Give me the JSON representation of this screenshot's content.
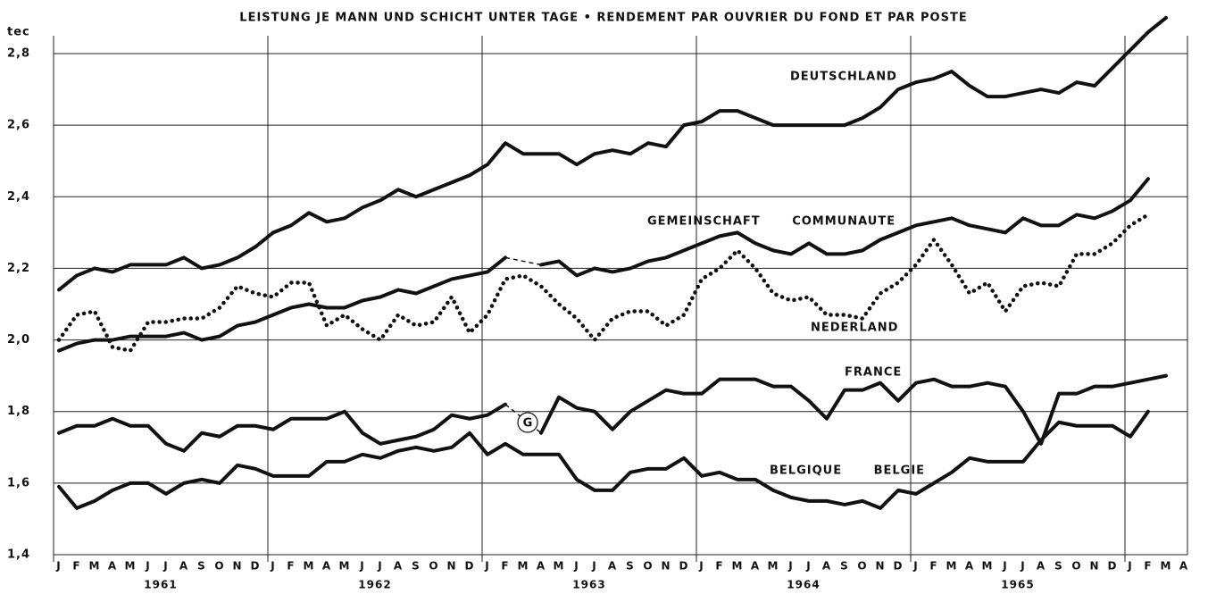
{
  "chart_data": {
    "type": "line",
    "title": "LEISTUNG JE MANN UND SCHICHT UNTER TAGE • RENDEMENT PAR OUVRIER DU FOND ET PAR POSTE",
    "y_label": "tec",
    "categories": [
      "J",
      "F",
      "M",
      "A",
      "M",
      "J",
      "J",
      "A",
      "S",
      "O",
      "N",
      "D",
      "J",
      "F",
      "M",
      "A",
      "M",
      "J",
      "J",
      "A",
      "S",
      "O",
      "N",
      "D",
      "J",
      "F",
      "M",
      "A",
      "M",
      "J",
      "J",
      "A",
      "S",
      "O",
      "N",
      "D",
      "J",
      "F",
      "M",
      "A",
      "M",
      "J",
      "J",
      "A",
      "S",
      "O",
      "N",
      "D",
      "J",
      "F",
      "M",
      "A",
      "M",
      "J",
      "J",
      "A",
      "S",
      "O",
      "N",
      "D",
      "J",
      "F",
      "M",
      "A"
    ],
    "years": [
      "1961",
      "1962",
      "1963",
      "1964",
      "1965"
    ],
    "ylim": [
      1.4,
      2.9
    ],
    "yticks": [
      {
        "value": 1.4,
        "label": "1,4"
      },
      {
        "value": 1.6,
        "label": "1,6"
      },
      {
        "value": 1.8,
        "label": "1,8"
      },
      {
        "value": 2.0,
        "label": "2,0"
      },
      {
        "value": 2.2,
        "label": "2,2"
      },
      {
        "value": 2.4,
        "label": "2,4"
      },
      {
        "value": 2.6,
        "label": "2,6"
      },
      {
        "value": 2.8,
        "label": "2,8"
      }
    ],
    "grid": true,
    "annotation": "G",
    "series": [
      {
        "name": "DEUTSCHLAND",
        "color": "#111111",
        "style": "solid",
        "values": [
          2.14,
          2.18,
          2.2,
          2.19,
          2.21,
          2.21,
          2.21,
          2.23,
          2.2,
          2.21,
          2.23,
          2.26,
          2.3,
          2.32,
          2.355,
          2.33,
          2.34,
          2.37,
          2.39,
          2.42,
          2.4,
          2.42,
          2.44,
          2.46,
          2.49,
          2.55,
          2.52,
          2.52,
          2.52,
          2.49,
          2.52,
          2.53,
          2.52,
          2.55,
          2.54,
          2.6,
          2.61,
          2.64,
          2.64,
          2.62,
          2.6,
          2.6,
          2.6,
          2.6,
          2.6,
          2.62,
          2.65,
          2.7,
          2.72,
          2.73,
          2.75,
          2.71,
          2.68,
          2.68,
          2.69,
          2.7,
          2.69,
          2.72,
          2.71,
          2.76,
          2.81,
          2.86,
          2.9,
          null
        ]
      },
      {
        "name": "GEMEINSCHAFT COMMUNAUTE",
        "color": "#111111",
        "style": "solid",
        "values": [
          1.97,
          1.99,
          2.0,
          2.0,
          2.01,
          2.01,
          2.01,
          2.02,
          2.0,
          2.01,
          2.04,
          2.05,
          2.07,
          2.09,
          2.1,
          2.09,
          2.09,
          2.11,
          2.12,
          2.14,
          2.13,
          2.15,
          2.17,
          2.18,
          2.19,
          2.23,
          null,
          2.21,
          2.22,
          2.18,
          2.2,
          2.19,
          2.2,
          2.22,
          2.23,
          2.25,
          2.27,
          2.29,
          2.3,
          2.27,
          2.25,
          2.24,
          2.27,
          2.24,
          2.24,
          2.25,
          2.28,
          2.3,
          2.32,
          2.33,
          2.34,
          2.32,
          2.31,
          2.3,
          2.34,
          2.32,
          2.32,
          2.35,
          2.34,
          2.36,
          2.39,
          2.45,
          null,
          null
        ]
      },
      {
        "name": "NEDERLAND",
        "color": "#111111",
        "style": "dotted",
        "values": [
          2.0,
          2.07,
          2.08,
          1.98,
          1.97,
          2.05,
          2.05,
          2.06,
          2.06,
          2.09,
          2.15,
          2.13,
          2.12,
          2.16,
          2.16,
          2.04,
          2.07,
          2.03,
          2.0,
          2.07,
          2.04,
          2.05,
          2.12,
          2.02,
          2.07,
          2.17,
          2.18,
          2.15,
          2.1,
          2.06,
          2.0,
          2.06,
          2.08,
          2.08,
          2.04,
          2.07,
          2.17,
          2.2,
          2.25,
          2.2,
          2.13,
          2.11,
          2.12,
          2.07,
          2.07,
          2.06,
          2.13,
          2.16,
          2.21,
          2.28,
          2.21,
          2.13,
          2.16,
          2.08,
          2.15,
          2.16,
          2.15,
          2.24,
          2.24,
          2.27,
          2.32,
          2.35,
          null,
          null
        ]
      },
      {
        "name": "FRANCE",
        "color": "#111111",
        "style": "solid",
        "values": [
          1.74,
          1.76,
          1.76,
          1.78,
          1.76,
          1.76,
          1.71,
          1.69,
          1.74,
          1.73,
          1.76,
          1.76,
          1.75,
          1.78,
          1.78,
          1.78,
          1.8,
          1.74,
          1.71,
          1.72,
          1.73,
          1.75,
          1.79,
          1.78,
          1.79,
          1.82,
          null,
          1.74,
          1.84,
          1.81,
          1.8,
          1.75,
          1.8,
          1.83,
          1.86,
          1.85,
          1.85,
          1.89,
          1.89,
          1.89,
          1.87,
          1.87,
          1.83,
          1.78,
          1.86,
          1.86,
          1.88,
          1.83,
          1.88,
          1.89,
          1.87,
          1.87,
          1.88,
          1.87,
          1.8,
          1.71,
          1.85,
          1.85,
          1.87,
          1.87,
          1.88,
          1.89,
          1.9,
          null
        ]
      },
      {
        "name": "BELGIQUE BELGIE",
        "color": "#111111",
        "style": "solid",
        "values": [
          1.59,
          1.53,
          1.55,
          1.58,
          1.6,
          1.6,
          1.57,
          1.6,
          1.61,
          1.6,
          1.65,
          1.64,
          1.62,
          1.62,
          1.62,
          1.66,
          1.66,
          1.68,
          1.67,
          1.69,
          1.7,
          1.69,
          1.7,
          1.74,
          1.68,
          1.71,
          1.68,
          1.68,
          1.68,
          1.61,
          1.58,
          1.58,
          1.63,
          1.64,
          1.64,
          1.67,
          1.62,
          1.63,
          1.61,
          1.61,
          1.58,
          1.56,
          1.55,
          1.55,
          1.54,
          1.55,
          1.53,
          1.58,
          1.57,
          1.6,
          1.63,
          1.67,
          1.66,
          1.66,
          1.66,
          1.72,
          1.77,
          1.76,
          1.76,
          1.76,
          1.73,
          1.8,
          null,
          null
        ]
      }
    ]
  }
}
